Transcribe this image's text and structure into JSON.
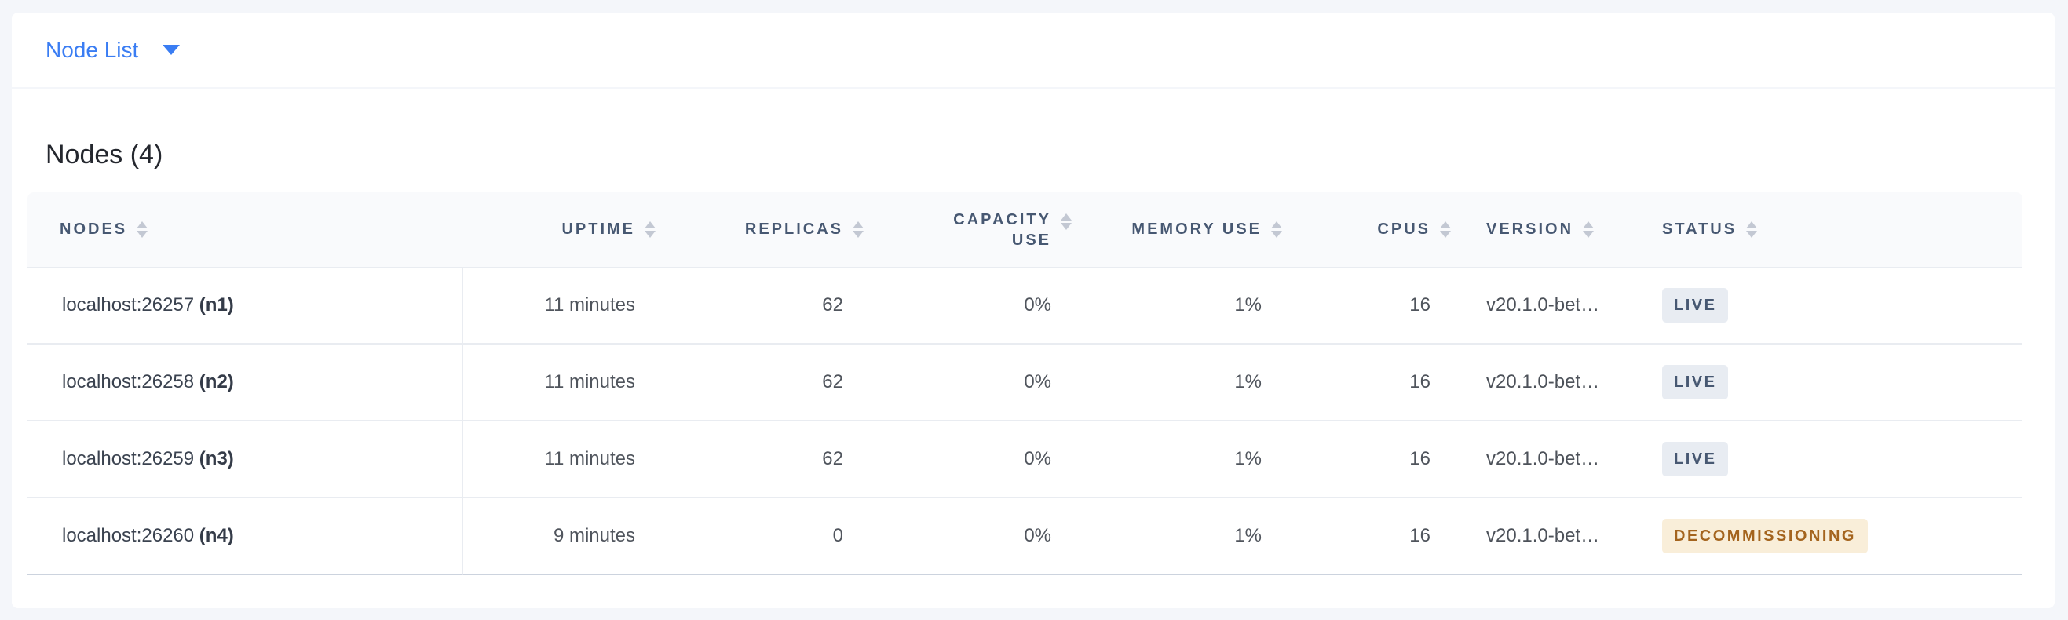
{
  "toolbar": {
    "view_selector_label": "Node List"
  },
  "overview": {
    "title": "Nodes (4)",
    "table": {
      "columns": [
        {
          "key": "nodes",
          "label": "NODES",
          "align": "left"
        },
        {
          "key": "uptime",
          "label": "UPTIME",
          "align": "right"
        },
        {
          "key": "replicas",
          "label": "REPLICAS",
          "align": "right"
        },
        {
          "key": "capacity_use",
          "label": "CAPACITY USE",
          "align": "right"
        },
        {
          "key": "memory_use",
          "label": "MEMORY USE",
          "align": "right"
        },
        {
          "key": "cpus",
          "label": "CPUS",
          "align": "right"
        },
        {
          "key": "version",
          "label": "VERSION",
          "align": "left"
        },
        {
          "key": "status",
          "label": "STATUS",
          "align": "left"
        }
      ],
      "rows": [
        {
          "address": "localhost:26257",
          "node_id": "(n1)",
          "uptime": "11 minutes",
          "replicas": "62",
          "capacity_use": "0%",
          "memory_use": "1%",
          "cpus": "16",
          "version": "v20.1.0-bet…",
          "status": "LIVE",
          "status_type": "live"
        },
        {
          "address": "localhost:26258",
          "node_id": "(n2)",
          "uptime": "11 minutes",
          "replicas": "62",
          "capacity_use": "0%",
          "memory_use": "1%",
          "cpus": "16",
          "version": "v20.1.0-bet…",
          "status": "LIVE",
          "status_type": "live"
        },
        {
          "address": "localhost:26259",
          "node_id": "(n3)",
          "uptime": "11 minutes",
          "replicas": "62",
          "capacity_use": "0%",
          "memory_use": "1%",
          "cpus": "16",
          "version": "v20.1.0-bet…",
          "status": "LIVE",
          "status_type": "live"
        },
        {
          "address": "localhost:26260",
          "node_id": "(n4)",
          "uptime": "9 minutes",
          "replicas": "0",
          "capacity_use": "0%",
          "memory_use": "1%",
          "cpus": "16",
          "version": "v20.1.0-bet…",
          "status": "DECOMMISSIONING",
          "status_type": "decommissioning"
        }
      ]
    }
  },
  "colors": {
    "accent_blue": "#3a7df3",
    "page_background": "#f4f6fa",
    "header_text": "#475872",
    "badge_live_bg": "#e8ecf2",
    "badge_live_text": "#475872",
    "badge_decommissioning_bg": "#f9eed9",
    "badge_decommissioning_text": "#a4641e"
  }
}
